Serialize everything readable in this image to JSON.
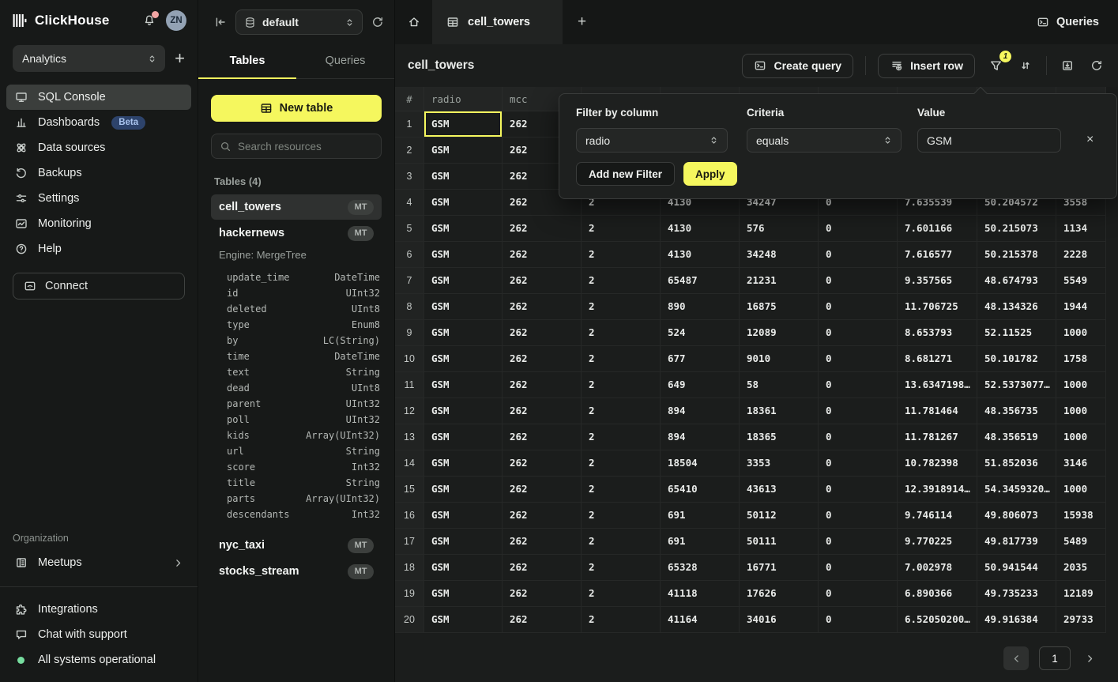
{
  "colors": {
    "accent_yellow": "#f5f75e",
    "beta_badge_bg": "#2d436b",
    "status_green": "#77dd9f",
    "notification_dot": "#f2a6a4",
    "selected_cell_border": "#f5f75e"
  },
  "sidebar": {
    "logo_text": "ClickHouse",
    "avatar_initials": "ZN",
    "workspace": "Analytics",
    "nav": [
      {
        "label": "SQL Console",
        "icon": "console",
        "active": true
      },
      {
        "label": "Dashboards",
        "icon": "dashboards",
        "badge": "Beta"
      },
      {
        "label": "Data sources",
        "icon": "datasources"
      },
      {
        "label": "Backups",
        "icon": "backups"
      },
      {
        "label": "Settings",
        "icon": "settings"
      },
      {
        "label": "Monitoring",
        "icon": "monitoring"
      },
      {
        "label": "Help",
        "icon": "help"
      }
    ],
    "connect_label": "Connect",
    "org_section_label": "Organization",
    "meetups_label": "Meetups",
    "footer": [
      {
        "label": "Integrations",
        "icon": "puzzle"
      },
      {
        "label": "Chat with support",
        "icon": "chat"
      },
      {
        "label": "All systems operational",
        "icon": "status-dot"
      }
    ]
  },
  "explorer": {
    "database": "default",
    "tabs": [
      "Tables",
      "Queries"
    ],
    "new_table_label": "New table",
    "search_placeholder": "Search resources",
    "tables_section_label": "Tables (4)",
    "tables": [
      {
        "name": "cell_towers",
        "badge": "MT",
        "selected": true
      },
      {
        "name": "hackernews",
        "badge": "MT",
        "engine": "Engine: MergeTree",
        "schema": [
          [
            "update_time",
            "DateTime"
          ],
          [
            "id",
            "UInt32"
          ],
          [
            "deleted",
            "UInt8"
          ],
          [
            "type",
            "Enum8"
          ],
          [
            "by",
            "LC(String)"
          ],
          [
            "time",
            "DateTime"
          ],
          [
            "text",
            "String"
          ],
          [
            "dead",
            "UInt8"
          ],
          [
            "parent",
            "UInt32"
          ],
          [
            "poll",
            "UInt32"
          ],
          [
            "kids",
            "Array(UInt32)"
          ],
          [
            "url",
            "String"
          ],
          [
            "score",
            "Int32"
          ],
          [
            "title",
            "String"
          ],
          [
            "parts",
            "Array(UInt32)"
          ],
          [
            "descendants",
            "Int32"
          ]
        ]
      },
      {
        "name": "nyc_taxi",
        "badge": "MT"
      },
      {
        "name": "stocks_stream",
        "badge": "MT"
      }
    ]
  },
  "main": {
    "tab": "cell_towers",
    "queries_label": "Queries",
    "title": "cell_towers",
    "toolbar": {
      "create_query": "Create query",
      "insert_row": "Insert row",
      "filter_badge": "1"
    },
    "table": {
      "headers": [
        "#",
        "radio",
        "mcc",
        "",
        "",
        "",
        "",
        "",
        "",
        ""
      ],
      "rows": [
        [
          "1",
          "GSM",
          "262",
          "",
          "",
          "",
          "",
          "",
          "",
          ""
        ],
        [
          "2",
          "GSM",
          "262",
          "",
          "",
          "",
          "",
          "",
          "",
          ""
        ],
        [
          "3",
          "GSM",
          "262",
          "",
          "",
          "",
          "",
          "",
          "",
          ""
        ],
        [
          "4",
          "GSM",
          "262",
          "2",
          "4130",
          "34247",
          "0",
          "7.635539",
          "50.204572",
          "3558"
        ],
        [
          "5",
          "GSM",
          "262",
          "2",
          "4130",
          "576",
          "0",
          "7.601166",
          "50.215073",
          "1134"
        ],
        [
          "6",
          "GSM",
          "262",
          "2",
          "4130",
          "34248",
          "0",
          "7.616577",
          "50.215378",
          "2228"
        ],
        [
          "7",
          "GSM",
          "262",
          "2",
          "65487",
          "21231",
          "0",
          "9.357565",
          "48.674793",
          "5549"
        ],
        [
          "8",
          "GSM",
          "262",
          "2",
          "890",
          "16875",
          "0",
          "11.706725",
          "48.134326",
          "1944"
        ],
        [
          "9",
          "GSM",
          "262",
          "2",
          "524",
          "12089",
          "0",
          "8.653793",
          "52.11525",
          "1000"
        ],
        [
          "10",
          "GSM",
          "262",
          "2",
          "677",
          "9010",
          "0",
          "8.681271",
          "50.101782",
          "1758"
        ],
        [
          "11",
          "GSM",
          "262",
          "2",
          "649",
          "58",
          "0",
          "13.6347198…",
          "52.5373077…",
          "1000"
        ],
        [
          "12",
          "GSM",
          "262",
          "2",
          "894",
          "18361",
          "0",
          "11.781464",
          "48.356735",
          "1000"
        ],
        [
          "13",
          "GSM",
          "262",
          "2",
          "894",
          "18365",
          "0",
          "11.781267",
          "48.356519",
          "1000"
        ],
        [
          "14",
          "GSM",
          "262",
          "2",
          "18504",
          "3353",
          "0",
          "10.782398",
          "51.852036",
          "3146"
        ],
        [
          "15",
          "GSM",
          "262",
          "2",
          "65410",
          "43613",
          "0",
          "12.3918914…",
          "54.3459320…",
          "1000"
        ],
        [
          "16",
          "GSM",
          "262",
          "2",
          "691",
          "50112",
          "0",
          "9.746114",
          "49.806073",
          "15938"
        ],
        [
          "17",
          "GSM",
          "262",
          "2",
          "691",
          "50111",
          "0",
          "9.770225",
          "49.817739",
          "5489"
        ],
        [
          "18",
          "GSM",
          "262",
          "2",
          "65328",
          "16771",
          "0",
          "7.002978",
          "50.941544",
          "2035"
        ],
        [
          "19",
          "GSM",
          "262",
          "2",
          "41118",
          "17626",
          "0",
          "6.890366",
          "49.735233",
          "12189"
        ],
        [
          "20",
          "GSM",
          "262",
          "2",
          "41164",
          "34016",
          "0",
          "6.52050200…",
          "49.916384",
          "29733"
        ]
      ],
      "selected_cell": {
        "row": "1",
        "column": "radio",
        "value": "GSM"
      }
    },
    "pagination": {
      "page": "1"
    }
  },
  "filter_popup": {
    "column_label": "Filter by column",
    "column_value": "radio",
    "criteria_label": "Criteria",
    "criteria_value": "equals",
    "value_label": "Value",
    "value": "GSM",
    "add_filter_label": "Add new Filter",
    "apply_label": "Apply"
  }
}
